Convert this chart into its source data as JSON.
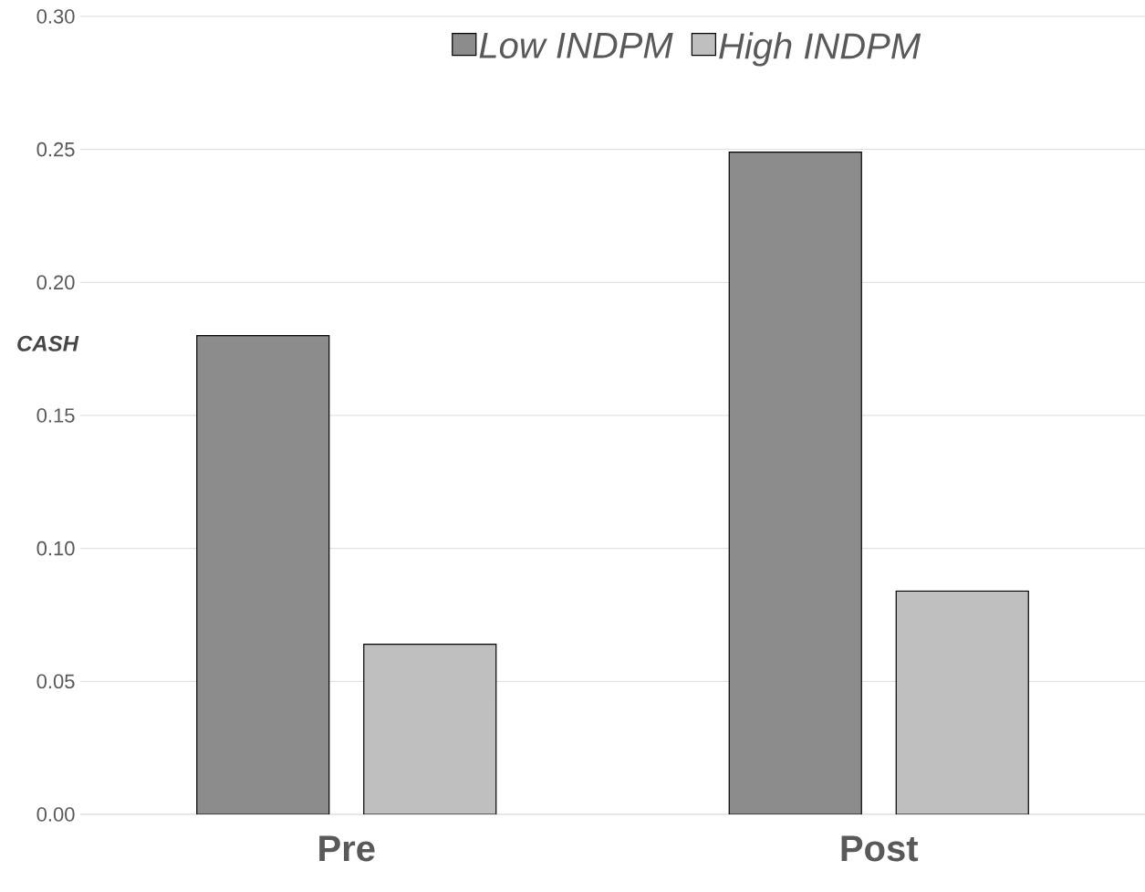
{
  "chart_data": {
    "type": "bar",
    "ylabel": "CASH",
    "categories": [
      "Pre",
      "Post"
    ],
    "series": [
      {
        "name": "Low INDPM",
        "color": "#8c8c8c",
        "values": [
          0.18,
          0.249
        ]
      },
      {
        "name": "High INDPM",
        "color": "#bfbfbf",
        "values": [
          0.064,
          0.084
        ]
      }
    ],
    "ylim": [
      0,
      0.3
    ],
    "yticks": [
      {
        "value": 0,
        "label": "0.00"
      },
      {
        "value": 0.05,
        "label": "0.05"
      },
      {
        "value": 0.1,
        "label": "0.10"
      },
      {
        "value": 0.15,
        "label": "0.15"
      },
      {
        "value": 0.2,
        "label": "0.20"
      },
      {
        "value": 0.25,
        "label": "0.25"
      },
      {
        "value": 0.3,
        "label": "0.30"
      }
    ],
    "grid": "y",
    "legend": "top"
  }
}
